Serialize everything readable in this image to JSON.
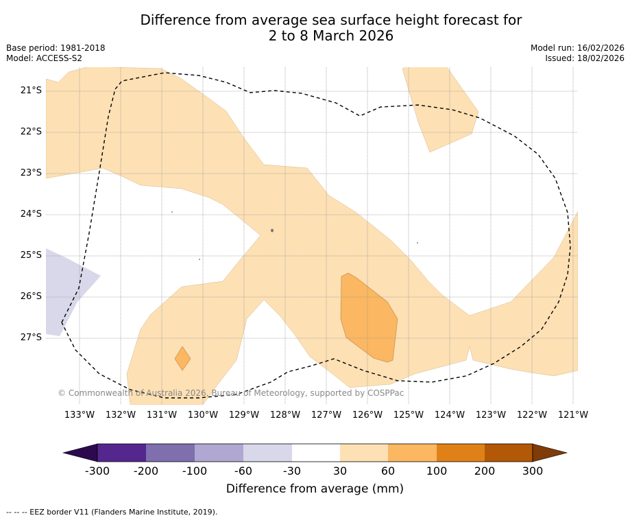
{
  "title_line1": "Difference from average sea surface height forecast for",
  "title_line2": "2 to 8 March 2026",
  "meta": {
    "base_period": "Base period: 1981-2018",
    "model": "Model: ACCESS-S2",
    "model_run": "Model run: 16/02/2026",
    "issued": "Issued: 18/02/2026"
  },
  "axes": {
    "lat_labels": [
      "21°S",
      "22°S",
      "23°S",
      "24°S",
      "25°S",
      "26°S",
      "27°S"
    ],
    "lon_labels": [
      "133°W",
      "132°W",
      "131°W",
      "130°W",
      "129°W",
      "128°W",
      "127°W",
      "126°W",
      "125°W",
      "124°W",
      "123°W",
      "122°W",
      "121°W"
    ]
  },
  "copyright": "© Commonwealth of Australia 2026, Bureau of Meteorology, supported by COSPPac",
  "colorbar": {
    "title": "Difference from average (mm)",
    "labels": [
      "-300",
      "-200",
      "-100",
      "-60",
      "-30",
      "30",
      "60",
      "100",
      "200",
      "300"
    ],
    "colors": [
      "#2d0a4e",
      "#54278f",
      "#7f6fae",
      "#b0a8d2",
      "#d8d8ea",
      "#ffffff",
      "#fde0b4",
      "#fbb761",
      "#e08118",
      "#b35806",
      "#7f3b08"
    ]
  },
  "footer": "--  --  -- EEZ border V11 (Flanders Marine Institute, 2019)."
}
